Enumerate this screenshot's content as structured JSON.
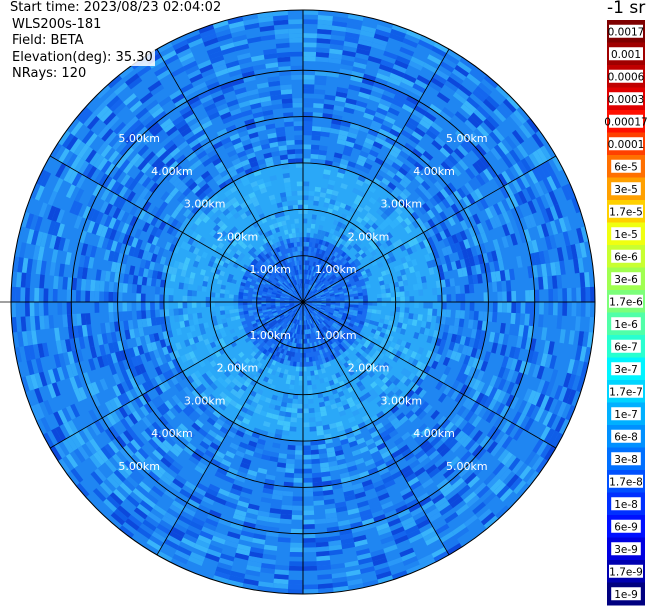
{
  "header": {
    "start_time": "Start time: 2023/08/23 02:04:02",
    "instrument": "WLS200s-181",
    "field": "Field: BETA",
    "elevation": "Elevation(deg): 35.30",
    "nrays": "NRays: 120"
  },
  "colorbar": {
    "unit": "-1 sr",
    "labels": [
      "0.0017",
      "0.001",
      "0.0006",
      "0.0003",
      "0.00017",
      "0.0001",
      "6e-5",
      "3e-5",
      "1.7e-5",
      "1e-5",
      "6e-6",
      "3e-6",
      "1.7e-6",
      "1e-6",
      "6e-7",
      "3e-7",
      "1.7e-7",
      "1e-7",
      "6e-8",
      "3e-8",
      "1.7e-8",
      "1e-8",
      "6e-9",
      "3e-9",
      "1.7e-9",
      "1e-9"
    ],
    "colors": [
      "#7f0000",
      "#a00000",
      "#c00000",
      "#e00000",
      "#ff1000",
      "#ff4000",
      "#ff7000",
      "#ffa000",
      "#ffd000",
      "#f0ff10",
      "#c8ff30",
      "#a0ff50",
      "#7cff7a",
      "#50ffa8",
      "#28ffd0",
      "#00f4ff",
      "#00d4ff",
      "#00b0ff",
      "#0090ff",
      "#0070ff",
      "#0050ff",
      "#0030ff",
      "#0010ff",
      "#0000e0",
      "#0000b0",
      "#000080"
    ]
  },
  "chart_data": {
    "type": "heatmap",
    "projection": "polar",
    "nrays": 120,
    "range_rings_km": [
      1.0,
      2.0,
      3.0,
      4.0,
      5.0
    ],
    "max_range_km": 6.3,
    "ring_labels": [
      "1.00km",
      "2.00km",
      "3.00km",
      "4.00km",
      "5.00km"
    ],
    "spokes": 12,
    "zones": [
      {
        "range_km": [
          0,
          1.4
        ],
        "typical_value": "1.7e-8",
        "color": "#1a6cf0"
      },
      {
        "range_km": [
          1.4,
          3.0
        ],
        "typical_value": "1e-7",
        "color": "#2aa8f8"
      },
      {
        "range_km": [
          3.0,
          6.3
        ],
        "typical_value": "6e-8",
        "color": "#1f86f2"
      }
    ]
  }
}
